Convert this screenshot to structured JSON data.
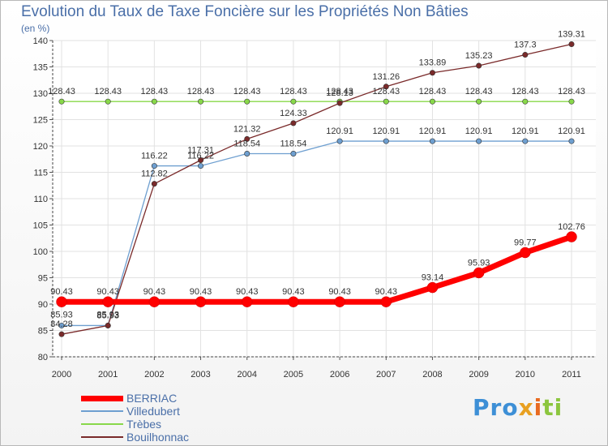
{
  "chart_data": {
    "type": "line",
    "title": "Evolution du Taux de Taxe Foncière sur les Propriétés Non Bâties",
    "ylabel": "(en %)",
    "xlabel": "",
    "ylim": [
      80,
      140
    ],
    "yticks": [
      80,
      85,
      90,
      95,
      100,
      105,
      110,
      115,
      120,
      125,
      130,
      135,
      140
    ],
    "grid": true,
    "legend_position": "bottom-left",
    "categories": [
      "2000",
      "2001",
      "2002",
      "2003",
      "2004",
      "2005",
      "2006",
      "2007",
      "2008",
      "2009",
      "2010",
      "2011"
    ],
    "series": [
      {
        "name": "BERRIAC",
        "color": "#ff0000",
        "values": [
          90.43,
          90.43,
          90.43,
          90.43,
          90.43,
          90.43,
          90.43,
          90.43,
          93.14,
          95.93,
          99.77,
          102.76
        ],
        "labels": [
          "90.43",
          "90.43",
          "90.43",
          "90.43",
          "90.43",
          "90.43",
          "90.43",
          "90.43",
          "93.14",
          "95.93",
          "99.77",
          "102.76"
        ]
      },
      {
        "name": "Villedubert",
        "color": "#6e9fd0",
        "values": [
          85.93,
          85.93,
          116.22,
          116.22,
          118.54,
          118.54,
          120.91,
          120.91,
          120.91,
          120.91,
          120.91,
          120.91
        ],
        "labels": [
          "85.93",
          "85.93",
          "116.22",
          "116.22",
          "118.54",
          "118.54",
          "120.91",
          "120.91",
          "120.91",
          "120.91",
          "120.91",
          "120.91"
        ]
      },
      {
        "name": "Trèbes",
        "color": "#88d84a",
        "values": [
          128.43,
          128.43,
          128.43,
          128.43,
          128.43,
          128.43,
          128.43,
          128.43,
          128.43,
          128.43,
          128.43,
          128.43
        ],
        "labels": [
          "128.43",
          "128.43",
          "128.43",
          "128.43",
          "128.43",
          "128.43",
          "128.43",
          "128.43",
          "128.43",
          "128.43",
          "128.43",
          "128.43"
        ]
      },
      {
        "name": "Bouilhonnac",
        "color": "#7a2a2a",
        "values": [
          84.28,
          85.93,
          112.82,
          117.31,
          121.32,
          124.33,
          128.13,
          131.26,
          133.89,
          135.23,
          137.3,
          139.31
        ],
        "labels": [
          "84.28",
          "85.93",
          "112.82",
          "117.31",
          "121.32",
          "124.33",
          "128.13",
          "131.26",
          "133.89",
          "135.23",
          "137.3",
          "139.31"
        ]
      }
    ]
  },
  "logo": {
    "p1": "Pro",
    "p2": "x",
    "p3": "i",
    "p4": "ti"
  }
}
